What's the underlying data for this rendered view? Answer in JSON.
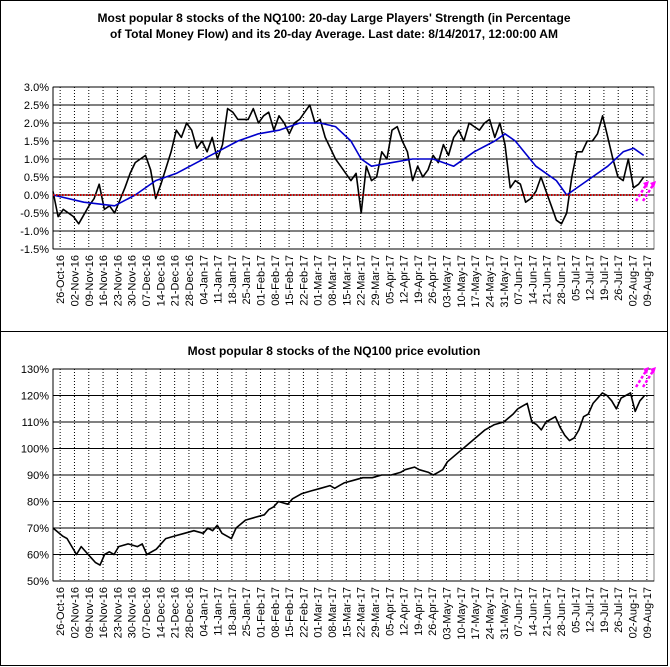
{
  "chart_data": [
    {
      "type": "line",
      "title": "Most popular 8 stocks of the NQ100: 20-day Large Players' Strength (in Percentage\nof Total Money Flow) and its 20-day Average. Last date: 8/14/2017, 12:00:00 AM",
      "xlabel": "",
      "ylabel": "",
      "ylim": [
        -1.5,
        3.0
      ],
      "yticks": [
        "-1.5%",
        "-1.0%",
        "-0.5%",
        "0.0%",
        "0.5%",
        "1.0%",
        "1.5%",
        "2.0%",
        "2.5%",
        "3.0%"
      ],
      "xticks": [
        "26-Oct-16",
        "02-Nov-16",
        "09-Nov-16",
        "16-Nov-16",
        "23-Nov-16",
        "30-Nov-16",
        "07-Dec-16",
        "14-Dec-16",
        "21-Dec-16",
        "28-Dec-16",
        "04-Jan-17",
        "11-Jan-17",
        "18-Jan-17",
        "25-Jan-17",
        "01-Feb-17",
        "08-Feb-17",
        "15-Feb-17",
        "22-Feb-17",
        "01-Mar-17",
        "08-Mar-17",
        "15-Mar-17",
        "22-Mar-17",
        "29-Mar-17",
        "05-Apr-17",
        "12-Apr-17",
        "19-Apr-17",
        "26-Apr-17",
        "03-May-17",
        "10-May-17",
        "17-May-17",
        "24-May-17",
        "31-May-17",
        "07-Jun-17",
        "14-Jun-17",
        "21-Jun-17",
        "28-Jun-17",
        "05-Jul-17",
        "12-Jul-17",
        "19-Jul-17",
        "26-Jul-17",
        "02-Aug-17",
        "09-Aug-17"
      ],
      "grid": true,
      "series": [
        {
          "color": "#000000",
          "values": [
            [
              0,
              0.1
            ],
            [
              1,
              -0.6
            ],
            [
              2,
              -0.4
            ],
            [
              4,
              -0.6
            ],
            [
              5,
              -0.8
            ],
            [
              7,
              -0.3
            ],
            [
              8,
              -0.1
            ],
            [
              9,
              0.3
            ],
            [
              10,
              -0.4
            ],
            [
              11,
              -0.3
            ],
            [
              12,
              -0.5
            ],
            [
              14,
              0.2
            ],
            [
              15,
              0.6
            ],
            [
              16,
              0.9
            ],
            [
              18,
              1.1
            ],
            [
              19,
              0.7
            ],
            [
              20,
              -0.1
            ],
            [
              21,
              0.3
            ],
            [
              23,
              1.2
            ],
            [
              24,
              1.8
            ],
            [
              25,
              1.6
            ],
            [
              26,
              2.0
            ],
            [
              27,
              1.8
            ],
            [
              28,
              1.3
            ],
            [
              29,
              1.5
            ],
            [
              30,
              1.2
            ],
            [
              31,
              1.6
            ],
            [
              32,
              1.0
            ],
            [
              33,
              1.4
            ],
            [
              34,
              2.4
            ],
            [
              35,
              2.3
            ],
            [
              36,
              2.1
            ],
            [
              38,
              2.1
            ],
            [
              39,
              2.4
            ],
            [
              40,
              2.0
            ],
            [
              41,
              2.2
            ],
            [
              42,
              2.3
            ],
            [
              43,
              1.8
            ],
            [
              44,
              2.2
            ],
            [
              45,
              2.0
            ],
            [
              46,
              1.7
            ],
            [
              47,
              2.0
            ],
            [
              48,
              2.1
            ],
            [
              49,
              2.3
            ],
            [
              50,
              2.5
            ],
            [
              51,
              2.0
            ],
            [
              52,
              2.1
            ],
            [
              53,
              1.6
            ],
            [
              54,
              1.3
            ],
            [
              55,
              1.0
            ],
            [
              56,
              0.8
            ],
            [
              57,
              0.6
            ],
            [
              58,
              0.4
            ],
            [
              59,
              0.6
            ],
            [
              60,
              -0.5
            ],
            [
              61,
              0.8
            ],
            [
              62,
              0.4
            ],
            [
              63,
              0.5
            ],
            [
              64,
              1.2
            ],
            [
              65,
              1.0
            ],
            [
              66,
              1.8
            ],
            [
              67,
              1.9
            ],
            [
              68,
              1.5
            ],
            [
              69,
              1.2
            ],
            [
              70,
              0.4
            ],
            [
              71,
              0.8
            ],
            [
              72,
              0.5
            ],
            [
              73,
              0.7
            ],
            [
              74,
              1.1
            ],
            [
              75,
              0.9
            ],
            [
              76,
              1.4
            ],
            [
              77,
              1.1
            ],
            [
              78,
              1.6
            ],
            [
              79,
              1.8
            ],
            [
              80,
              1.5
            ],
            [
              81,
              2.0
            ],
            [
              82,
              1.9
            ],
            [
              83,
              1.8
            ],
            [
              84,
              2.0
            ],
            [
              85,
              2.1
            ],
            [
              86,
              1.6
            ],
            [
              87,
              2.0
            ],
            [
              88,
              1.4
            ],
            [
              89,
              0.2
            ],
            [
              90,
              0.4
            ],
            [
              91,
              0.3
            ],
            [
              92,
              -0.2
            ],
            [
              93,
              -0.1
            ],
            [
              94,
              0.1
            ],
            [
              95,
              0.5
            ],
            [
              96,
              0.1
            ],
            [
              97,
              -0.3
            ],
            [
              98,
              -0.7
            ],
            [
              99,
              -0.8
            ],
            [
              100,
              -0.5
            ],
            [
              101,
              0.5
            ],
            [
              102,
              1.2
            ],
            [
              103,
              1.2
            ],
            [
              104,
              1.5
            ],
            [
              105,
              1.5
            ],
            [
              106,
              1.7
            ],
            [
              107,
              2.2
            ],
            [
              108,
              1.6
            ],
            [
              109,
              1.0
            ],
            [
              110,
              0.5
            ],
            [
              111,
              0.4
            ],
            [
              112,
              1.0
            ],
            [
              113,
              0.2
            ],
            [
              114,
              0.3
            ],
            [
              115,
              0.5
            ]
          ]
        },
        {
          "color": "#0000cc",
          "values": [
            [
              0,
              0.0
            ],
            [
              6,
              -0.2
            ],
            [
              12,
              -0.3
            ],
            [
              16,
              0.0
            ],
            [
              20,
              0.4
            ],
            [
              24,
              0.6
            ],
            [
              28,
              0.9
            ],
            [
              32,
              1.2
            ],
            [
              36,
              1.5
            ],
            [
              40,
              1.7
            ],
            [
              44,
              1.8
            ],
            [
              48,
              2.0
            ],
            [
              52,
              2.0
            ],
            [
              55,
              1.9
            ],
            [
              58,
              1.5
            ],
            [
              60,
              1.0
            ],
            [
              62,
              0.8
            ],
            [
              66,
              0.9
            ],
            [
              70,
              1.0
            ],
            [
              74,
              1.0
            ],
            [
              78,
              0.8
            ],
            [
              82,
              1.2
            ],
            [
              86,
              1.5
            ],
            [
              88,
              1.7
            ],
            [
              90,
              1.5
            ],
            [
              94,
              0.8
            ],
            [
              98,
              0.4
            ],
            [
              100,
              0.0
            ],
            [
              104,
              0.4
            ],
            [
              108,
              0.8
            ],
            [
              111,
              1.2
            ],
            [
              113,
              1.3
            ],
            [
              115,
              1.1
            ]
          ]
        },
        {
          "color": "#cc0000",
          "style": "dotted",
          "values": [
            [
              0,
              0.0
            ],
            [
              115,
              0.0
            ]
          ]
        }
      ]
    },
    {
      "type": "line",
      "title": "Most popular 8 stocks of the NQ100 price evolution",
      "xlabel": "",
      "ylabel": "",
      "ylim": [
        50,
        130
      ],
      "yticks": [
        "50%",
        "60%",
        "70%",
        "80%",
        "90%",
        "100%",
        "110%",
        "120%",
        "130%"
      ],
      "xticks": [
        "26-Oct-16",
        "02-Nov-16",
        "09-Nov-16",
        "16-Nov-16",
        "23-Nov-16",
        "30-Nov-16",
        "07-Dec-16",
        "14-Dec-16",
        "21-Dec-16",
        "28-Dec-16",
        "04-Jan-17",
        "11-Jan-17",
        "18-Jan-17",
        "25-Jan-17",
        "01-Feb-17",
        "08-Feb-17",
        "15-Feb-17",
        "22-Feb-17",
        "01-Mar-17",
        "08-Mar-17",
        "15-Mar-17",
        "22-Mar-17",
        "29-Mar-17",
        "05-Apr-17",
        "12-Apr-17",
        "19-Apr-17",
        "26-Apr-17",
        "03-May-17",
        "10-May-17",
        "17-May-17",
        "24-May-17",
        "31-May-17",
        "07-Jun-17",
        "14-Jun-17",
        "21-Jun-17",
        "28-Jun-17",
        "05-Jul-17",
        "12-Jul-17",
        "19-Jul-17",
        "26-Jul-17",
        "02-Aug-17",
        "09-Aug-17"
      ],
      "grid": true,
      "series": [
        {
          "color": "#000000",
          "values": [
            [
              0,
              70
            ],
            [
              2,
              67
            ],
            [
              3,
              66
            ],
            [
              5,
              60
            ],
            [
              6,
              63
            ],
            [
              8,
              59
            ],
            [
              9,
              57
            ],
            [
              10,
              56
            ],
            [
              11,
              60
            ],
            [
              12,
              61
            ],
            [
              13,
              60
            ],
            [
              14,
              63
            ],
            [
              16,
              64
            ],
            [
              18,
              63
            ],
            [
              19,
              64
            ],
            [
              20,
              60
            ],
            [
              22,
              62
            ],
            [
              24,
              66
            ],
            [
              26,
              67
            ],
            [
              28,
              68
            ],
            [
              30,
              69
            ],
            [
              32,
              68
            ],
            [
              33,
              70
            ],
            [
              34,
              69
            ],
            [
              35,
              71
            ],
            [
              36,
              68
            ],
            [
              38,
              66
            ],
            [
              39,
              70
            ],
            [
              41,
              73
            ],
            [
              43,
              74
            ],
            [
              45,
              75
            ],
            [
              46,
              77
            ],
            [
              47,
              78
            ],
            [
              48,
              80
            ],
            [
              50,
              79
            ],
            [
              51,
              81
            ],
            [
              53,
              83
            ],
            [
              55,
              84
            ],
            [
              57,
              85
            ],
            [
              59,
              86
            ],
            [
              60,
              85
            ],
            [
              61,
              86
            ],
            [
              62,
              87
            ],
            [
              64,
              88
            ],
            [
              66,
              89
            ],
            [
              68,
              89
            ],
            [
              70,
              90
            ],
            [
              72,
              90
            ],
            [
              74,
              91
            ],
            [
              75,
              92
            ],
            [
              77,
              93
            ],
            [
              78,
              92
            ],
            [
              80,
              91
            ],
            [
              81,
              90
            ],
            [
              82,
              91
            ],
            [
              83,
              92
            ],
            [
              84,
              95
            ],
            [
              86,
              98
            ],
            [
              88,
              101
            ],
            [
              90,
              104
            ],
            [
              92,
              107
            ],
            [
              94,
              109
            ],
            [
              96,
              110
            ],
            [
              98,
              113
            ],
            [
              99,
              115
            ],
            [
              100,
              116
            ],
            [
              101,
              117
            ],
            [
              102,
              110
            ],
            [
              103,
              109
            ],
            [
              104,
              107
            ],
            [
              105,
              110
            ],
            [
              107,
              112
            ],
            [
              108,
              108
            ],
            [
              109,
              105
            ],
            [
              110,
              103
            ],
            [
              111,
              104
            ],
            [
              112,
              107
            ],
            [
              113,
              112
            ],
            [
              114,
              113
            ],
            [
              115,
              117
            ],
            [
              116,
              119
            ],
            [
              117,
              121
            ],
            [
              118,
              120
            ],
            [
              119,
              118
            ],
            [
              120,
              115
            ],
            [
              121,
              119
            ],
            [
              122,
              120
            ],
            [
              123,
              121
            ],
            [
              124,
              114
            ],
            [
              125,
              118
            ],
            [
              126,
              120
            ]
          ]
        }
      ]
    }
  ]
}
